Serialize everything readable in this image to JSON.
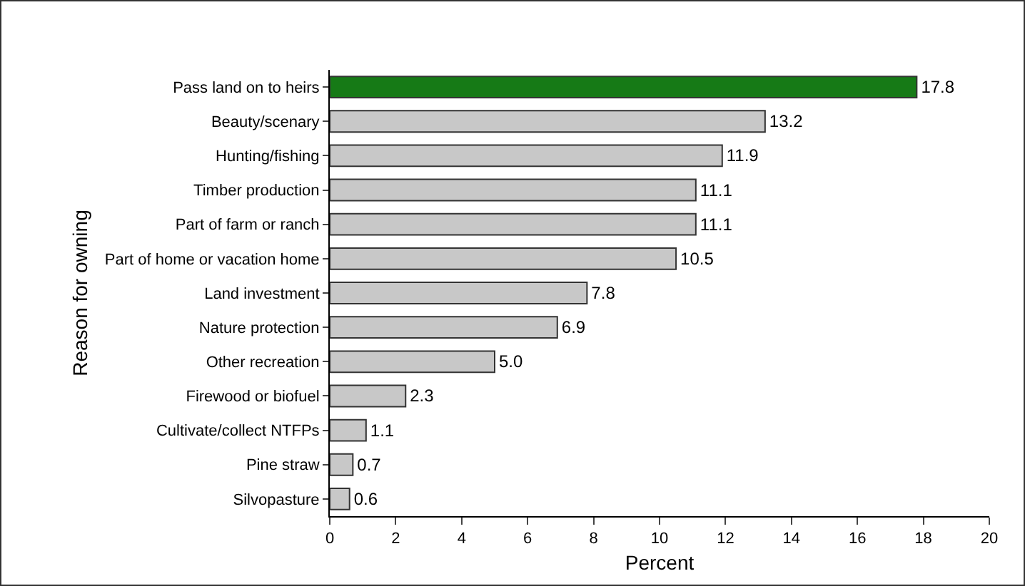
{
  "chart_data": {
    "type": "bar",
    "orientation": "horizontal",
    "xlabel": "Percent",
    "ylabel": "Reason for owning",
    "categories": [
      "Pass land on to heirs",
      "Beauty/scenary",
      "Hunting/fishing",
      "Timber production",
      "Part of farm or ranch",
      "Part of home or vacation home",
      "Land investment",
      "Nature protection",
      "Other recreation",
      "Firewood or biofuel",
      "Cultivate/collect NTFPs",
      "Pine straw",
      "Silvopasture"
    ],
    "values": [
      17.8,
      13.2,
      11.9,
      11.1,
      11.1,
      10.5,
      7.8,
      6.9,
      5.0,
      2.3,
      1.1,
      0.7,
      0.6
    ],
    "colors": [
      "#167a16",
      "#c8c8c8",
      "#c8c8c8",
      "#c8c8c8",
      "#c8c8c8",
      "#c8c8c8",
      "#c8c8c8",
      "#c8c8c8",
      "#c8c8c8",
      "#c8c8c8",
      "#c8c8c8",
      "#c8c8c8",
      "#c8c8c8"
    ],
    "value_labels": [
      "17.8",
      "13.2",
      "11.9",
      "11.1",
      "11.1",
      "10.5",
      "7.8",
      "6.9",
      "5.0",
      "2.3",
      "1.1",
      "0.7",
      "0.6"
    ],
    "xlim": [
      0,
      20
    ],
    "xticks": [
      0,
      2,
      4,
      6,
      8,
      10,
      12,
      14,
      16,
      18,
      20
    ],
    "grid": false,
    "legend": false
  }
}
